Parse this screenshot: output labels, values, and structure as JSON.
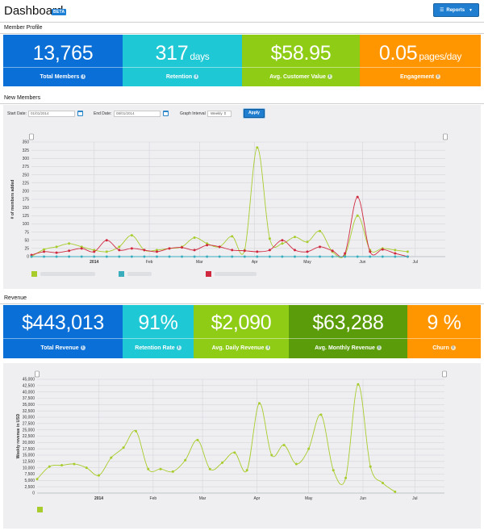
{
  "header": {
    "title": "Dashboard",
    "badge": "BETA",
    "reports_label": "Reports"
  },
  "member_profile": {
    "section_title": "Member Profile",
    "metrics": [
      {
        "value": "13,765",
        "unit": "",
        "label": "Total Members",
        "color": "#0a6fd6"
      },
      {
        "value": "317",
        "unit": "days",
        "label": "Retention",
        "color": "#1ec8d4"
      },
      {
        "value": "$58.95",
        "unit": "",
        "label": "Avg. Customer Value",
        "color": "#8fcc16"
      },
      {
        "value": "0.05",
        "unit": "pages/day",
        "label": "Engagement",
        "color": "#ff9600"
      }
    ]
  },
  "new_members": {
    "section_title": "New Members",
    "start_label": "Start Date:",
    "start_value": "01/01/2014",
    "end_label": "End Date:",
    "end_value": "08/01/2014",
    "interval_label": "Graph Interval",
    "interval_value": "Weekly",
    "apply_label": "Apply"
  },
  "revenue": {
    "section_title": "Revenue",
    "metrics": [
      {
        "value": "$443,013",
        "label": "Total Revenue",
        "color": "#0a6fd6"
      },
      {
        "value": "91%",
        "label": "Retention Rate",
        "color": "#1ec8d4"
      },
      {
        "value": "$2,090",
        "label": "Avg. Daily Revenue",
        "color": "#8fcc16"
      },
      {
        "value": "$63,288",
        "label": "Avg. Monthly Revenue",
        "color": "#5a9c0a"
      },
      {
        "value": "9 %",
        "label": "Churn",
        "color": "#ff9600"
      }
    ]
  },
  "colors": {
    "green": "#a8cc2c",
    "red": "#d0283e",
    "teal": "#3aaebd",
    "accent": "#1f7ed0"
  },
  "chart_data": [
    {
      "type": "line",
      "title": "New Members",
      "ylabel": "# of members added",
      "xlabel": "",
      "ylim": [
        0,
        350
      ],
      "yticks": [
        0,
        25,
        50,
        75,
        100,
        125,
        150,
        175,
        200,
        225,
        250,
        275,
        300,
        325,
        350
      ],
      "x_tick_labels": [
        "2014",
        "Feb",
        "Mar",
        "Apr",
        "May",
        "Jun",
        "Jul"
      ],
      "x_tick_weeks": [
        5,
        9.4,
        13.4,
        17.8,
        22,
        26.4,
        30.6
      ],
      "x_range_weeks": [
        0,
        33
      ],
      "series": [
        {
          "name": "",
          "color": "#a8cc2c",
          "values": [
            0,
            22,
            30,
            40,
            30,
            20,
            15,
            30,
            65,
            20,
            20,
            25,
            30,
            58,
            40,
            30,
            62,
            20,
            333,
            55,
            40,
            60,
            45,
            78,
            15,
            5,
            125,
            20,
            25,
            20,
            15
          ]
        },
        {
          "name": "",
          "color": "#d0283e",
          "values": [
            5,
            15,
            12,
            18,
            25,
            15,
            50,
            20,
            25,
            20,
            15,
            25,
            28,
            20,
            35,
            30,
            20,
            18,
            15,
            20,
            50,
            20,
            15,
            30,
            18,
            10,
            182,
            15,
            22,
            10,
            0
          ]
        },
        {
          "name": "",
          "color": "#3aaebd",
          "values": [
            0,
            0,
            0,
            0,
            0,
            0,
            0,
            0,
            0,
            0,
            0,
            0,
            0,
            0,
            0,
            0,
            0,
            0,
            0,
            0,
            0,
            0,
            0,
            0,
            0,
            0,
            0,
            0,
            0,
            0,
            0
          ]
        }
      ]
    },
    {
      "type": "line",
      "title": "Revenue",
      "ylabel": "Weekly revenue in USD",
      "xlabel": "",
      "ylim": [
        0,
        45000
      ],
      "yticks": [
        0,
        2500,
        5000,
        7500,
        10000,
        12500,
        15000,
        17500,
        20000,
        22500,
        25000,
        27500,
        30000,
        32500,
        35000,
        37500,
        40000,
        42500,
        45000
      ],
      "ytick_labels": [
        "0",
        "2,500",
        "5,000",
        "7,500",
        "10,000",
        "12,500",
        "15,000",
        "17,500",
        "20,000",
        "22,500",
        "25,000",
        "27,500",
        "30,000",
        "32,500",
        "35,000",
        "37,500",
        "40,000",
        "42,500",
        "45,000"
      ],
      "x_tick_labels": [
        "2014",
        "Feb",
        "Mar",
        "Apr",
        "May",
        "Jun",
        "Jul"
      ],
      "x_tick_weeks": [
        5,
        9.4,
        13.4,
        17.8,
        22,
        26.4,
        30.6
      ],
      "x_range_weeks": [
        0,
        33
      ],
      "series": [
        {
          "name": "",
          "color": "#a8cc2c",
          "values": [
            5500,
            10500,
            11000,
            11500,
            10000,
            7000,
            14000,
            18000,
            24500,
            9500,
            9500,
            8500,
            13000,
            21000,
            9500,
            12000,
            16000,
            9000,
            35500,
            15000,
            19000,
            11500,
            17500,
            31000,
            9000,
            6000,
            43000,
            10500,
            4000,
            500
          ]
        }
      ]
    }
  ]
}
